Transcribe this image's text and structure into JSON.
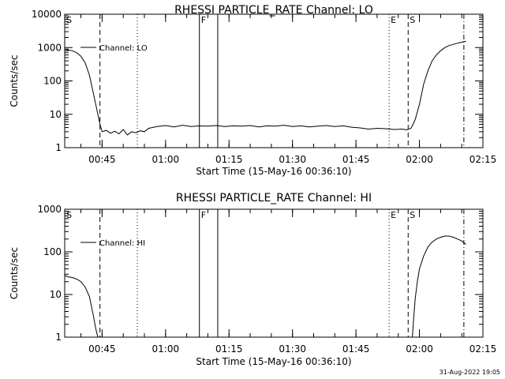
{
  "chart_data": [
    {
      "type": "line",
      "title": "RHESSI PARTICLE_RATE Channel: LO",
      "xlabel": "Start Time (15-May-16 00:36:10)",
      "ylabel": "Counts/sec",
      "yscale": "log",
      "ylim": [
        1,
        10000
      ],
      "xlim": [
        "00:36:10",
        "02:15:00"
      ],
      "x_tick_labels": [
        "00:45",
        "01:00",
        "01:15",
        "01:30",
        "01:45",
        "02:00",
        "02:15"
      ],
      "y_tick_labels": [
        "1",
        "10",
        "100",
        "1000",
        "10000"
      ],
      "legend": "top-left",
      "series": [
        {
          "name": "Channel: LO",
          "x": [
            "00:36:10",
            "00:37:00",
            "00:38:00",
            "00:39:00",
            "00:40:00",
            "00:41:00",
            "00:42:00",
            "00:43:00",
            "00:44:00",
            "00:44:30",
            "00:45:00",
            "00:46:00",
            "00:47:00",
            "00:48:00",
            "00:49:00",
            "00:50:00",
            "00:51:00",
            "00:52:00",
            "00:53:00",
            "00:54:00",
            "00:55:00",
            "00:56:00",
            "00:58:00",
            "01:00:00",
            "01:02:00",
            "01:04:00",
            "01:06:00",
            "01:08:00",
            "01:10:00",
            "01:12:00",
            "01:14:00",
            "01:16:00",
            "01:18:00",
            "01:20:00",
            "01:22:00",
            "01:24:00",
            "01:26:00",
            "01:28:00",
            "01:30:00",
            "01:32:00",
            "01:34:00",
            "01:36:00",
            "01:38:00",
            "01:40:00",
            "01:42:00",
            "01:44:00",
            "01:46:00",
            "01:48:00",
            "01:50:00",
            "01:52:00",
            "01:54:00",
            "01:56:00",
            "01:57:00",
            "01:58:00",
            "01:58:30",
            "01:59:00",
            "02:00:00",
            "02:01:00",
            "02:02:00",
            "02:03:00",
            "02:04:00",
            "02:05:00",
            "02:06:00",
            "02:07:00",
            "02:08:00",
            "02:09:00",
            "02:10:00",
            "02:11:00"
          ],
          "values": [
            900,
            850,
            800,
            700,
            550,
            350,
            150,
            40,
            10,
            5,
            3,
            3.3,
            2.7,
            3.1,
            2.6,
            3.5,
            2.4,
            3,
            2.8,
            3.2,
            3,
            3.8,
            4.3,
            4.6,
            4.2,
            4.7,
            4.3,
            4.5,
            4.4,
            4.6,
            4.3,
            4.5,
            4.4,
            4.6,
            4.2,
            4.5,
            4.4,
            4.7,
            4.3,
            4.5,
            4.2,
            4.4,
            4.6,
            4.3,
            4.5,
            4.1,
            3.9,
            3.6,
            3.8,
            3.7,
            3.5,
            3.6,
            3.4,
            3.8,
            5,
            7,
            20,
            80,
            200,
            400,
            600,
            800,
            1000,
            1150,
            1250,
            1350,
            1450,
            1550
          ]
        }
      ],
      "markers": [
        {
          "label": "S",
          "time": "00:36:10",
          "style": "solid"
        },
        {
          "label": "",
          "time": "00:44:30",
          "style": "dashed"
        },
        {
          "label": "",
          "time": "00:53:20",
          "style": "dotted"
        },
        {
          "label": "F",
          "time": "01:08:00",
          "style": "solid"
        },
        {
          "label": "",
          "time": "01:12:20",
          "style": "solid"
        },
        {
          "label": "E",
          "time": "01:52:50",
          "style": "dotted"
        },
        {
          "label": "S",
          "time": "01:57:20",
          "style": "dashed"
        },
        {
          "label": "",
          "time": "02:10:30",
          "style": "dashdot"
        }
      ]
    },
    {
      "type": "line",
      "title": "RHESSI PARTICLE_RATE Channel: HI",
      "xlabel": "Start Time (15-May-16 00:36:10)",
      "ylabel": "Counts/sec",
      "yscale": "log",
      "ylim": [
        1,
        1000
      ],
      "xlim": [
        "00:36:10",
        "02:15:00"
      ],
      "x_tick_labels": [
        "00:45",
        "01:00",
        "01:15",
        "01:30",
        "01:45",
        "02:00",
        "02:15"
      ],
      "y_tick_labels": [
        "1",
        "10",
        "100",
        "1000"
      ],
      "legend": "top-left",
      "series": [
        {
          "name": "Channel: HI",
          "segments": [
            {
              "x": [
                "00:36:10",
                "00:37:00",
                "00:38:00",
                "00:39:00",
                "00:40:00",
                "00:41:00",
                "00:42:00",
                "00:43:00",
                "00:43:30",
                "00:44:00"
              ],
              "values": [
                28,
                26,
                25,
                23,
                20,
                15,
                9,
                3,
                1.6,
                1
              ]
            },
            {
              "x": [
                "01:58:20",
                "01:58:40",
                "01:59:00",
                "01:59:30",
                "02:00:00",
                "02:01:00",
                "02:02:00",
                "02:03:00",
                "02:04:00",
                "02:05:00",
                "02:06:00",
                "02:07:00",
                "02:08:00",
                "02:09:00",
                "02:10:00",
                "02:11:00"
              ],
              "values": [
                1,
                3,
                8,
                20,
                40,
                80,
                130,
                170,
                200,
                220,
                235,
                235,
                220,
                200,
                180,
                150
              ]
            }
          ]
        }
      ],
      "markers": [
        {
          "label": "S",
          "time": "00:36:10",
          "style": "solid"
        },
        {
          "label": "",
          "time": "00:44:30",
          "style": "dashed"
        },
        {
          "label": "",
          "time": "00:53:20",
          "style": "dotted"
        },
        {
          "label": "F",
          "time": "01:08:00",
          "style": "solid"
        },
        {
          "label": "",
          "time": "01:12:20",
          "style": "solid"
        },
        {
          "label": "E",
          "time": "01:52:50",
          "style": "dotted"
        },
        {
          "label": "S",
          "time": "01:57:20",
          "style": "dashed"
        },
        {
          "label": "",
          "time": "02:10:30",
          "style": "dashdot"
        }
      ]
    }
  ],
  "footer": {
    "timestamp": "31-Aug-2022 19:05"
  }
}
